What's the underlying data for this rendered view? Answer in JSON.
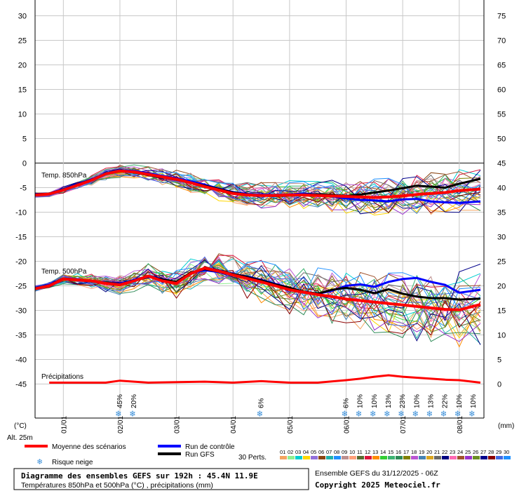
{
  "chart_data": {
    "type": "line",
    "left_axis": {
      "unit": "(°C)",
      "ticks": [
        30,
        25,
        20,
        15,
        10,
        5,
        0,
        -5,
        -10,
        -15,
        -20,
        -25,
        -30,
        -35,
        -40,
        -45
      ],
      "range": [
        -45,
        30
      ]
    },
    "right_axis": {
      "unit": "(mm)",
      "ticks": [
        75,
        70,
        65,
        60,
        55,
        50,
        45,
        40,
        35,
        30,
        25,
        20,
        15,
        10,
        5,
        0
      ],
      "range": [
        0,
        75
      ]
    },
    "altitude": "Alt. 25m",
    "x_ticks": [
      {
        "label": "01/01",
        "t": 12
      },
      {
        "label": "02/01",
        "t": 36
      },
      {
        "label": "03/01",
        "t": 60
      },
      {
        "label": "04/01",
        "t": 84
      },
      {
        "label": "05/01",
        "t": 108
      },
      {
        "label": "06/01",
        "t": 132
      },
      {
        "label": "07/01",
        "t": 156
      },
      {
        "label": "08/01",
        "t": 180
      }
    ],
    "x_range_hours": [
      0,
      189
    ],
    "annotations": {
      "t850": "Temp. 850hPa",
      "t500": "Temp. 500hPa",
      "precip": "Précipitations"
    },
    "snow_risk": [
      {
        "t": 36,
        "pct": "45%"
      },
      {
        "t": 42,
        "pct": "20%"
      },
      {
        "t": 96,
        "pct": "6%"
      },
      {
        "t": 132,
        "pct": "6%"
      },
      {
        "t": 138,
        "pct": "10%"
      },
      {
        "t": 144,
        "pct": "10%"
      },
      {
        "t": 150,
        "pct": "13%"
      },
      {
        "t": 156,
        "pct": "23%"
      },
      {
        "t": 162,
        "pct": "10%"
      },
      {
        "t": 168,
        "pct": "13%"
      },
      {
        "t": 174,
        "pct": "22%"
      },
      {
        "t": 180,
        "pct": "10%"
      },
      {
        "t": 186,
        "pct": "10%"
      }
    ],
    "series": [
      {
        "name": "Moyenne des scénarios",
        "color": "#ff0000",
        "t850": [
          [
            0,
            -6.5
          ],
          [
            6,
            -6.3
          ],
          [
            12,
            -5.5
          ],
          [
            18,
            -4.5
          ],
          [
            24,
            -3.5
          ],
          [
            30,
            -2.2
          ],
          [
            36,
            -1.6
          ],
          [
            42,
            -1.8
          ],
          [
            48,
            -2.3
          ],
          [
            54,
            -2.8
          ],
          [
            60,
            -3.3
          ],
          [
            66,
            -4
          ],
          [
            72,
            -4.8
          ],
          [
            78,
            -5.5
          ],
          [
            84,
            -6.2
          ],
          [
            90,
            -6.5
          ],
          [
            96,
            -6.6
          ],
          [
            102,
            -6.6
          ],
          [
            108,
            -6.5
          ],
          [
            114,
            -6.5
          ],
          [
            120,
            -6.6
          ],
          [
            126,
            -6.7
          ],
          [
            132,
            -6.8
          ],
          [
            138,
            -6.9
          ],
          [
            144,
            -7
          ],
          [
            150,
            -6.9
          ],
          [
            156,
            -6.7
          ],
          [
            162,
            -6.4
          ],
          [
            168,
            -6.2
          ],
          [
            174,
            -6
          ],
          [
            180,
            -5.6
          ],
          [
            189,
            -5.3
          ]
        ],
        "t500": [
          [
            0,
            -25.6
          ],
          [
            6,
            -25
          ],
          [
            12,
            -23.6
          ],
          [
            18,
            -23.8
          ],
          [
            24,
            -24
          ],
          [
            30,
            -24.5
          ],
          [
            36,
            -24.8
          ],
          [
            42,
            -24
          ],
          [
            48,
            -23
          ],
          [
            54,
            -24
          ],
          [
            60,
            -24.5
          ],
          [
            66,
            -22.5
          ],
          [
            72,
            -21.4
          ],
          [
            78,
            -22
          ],
          [
            84,
            -22.8
          ],
          [
            90,
            -23.5
          ],
          [
            96,
            -24.2
          ],
          [
            102,
            -25
          ],
          [
            108,
            -25.8
          ],
          [
            114,
            -26.3
          ],
          [
            120,
            -26.8
          ],
          [
            126,
            -27.2
          ],
          [
            132,
            -27.7
          ],
          [
            138,
            -28
          ],
          [
            144,
            -28.3
          ],
          [
            150,
            -28.6
          ],
          [
            156,
            -28.9
          ],
          [
            162,
            -29.2
          ],
          [
            168,
            -29.5
          ],
          [
            174,
            -29.8
          ],
          [
            180,
            -29.9
          ],
          [
            189,
            -28.8
          ]
        ],
        "precip": [
          [
            6,
            0
          ],
          [
            30,
            0
          ],
          [
            36,
            0.4
          ],
          [
            48,
            0
          ],
          [
            72,
            0.2
          ],
          [
            84,
            0
          ],
          [
            96,
            0.3
          ],
          [
            108,
            0
          ],
          [
            120,
            0
          ],
          [
            132,
            0.5
          ],
          [
            138,
            0.8
          ],
          [
            144,
            1.2
          ],
          [
            150,
            1.5
          ],
          [
            156,
            1.2
          ],
          [
            162,
            1
          ],
          [
            168,
            0.8
          ],
          [
            174,
            0.6
          ],
          [
            180,
            0.5
          ],
          [
            189,
            0
          ]
        ]
      },
      {
        "name": "Run de contrôle",
        "color": "#0000ff",
        "t850": [
          [
            0,
            -6.3
          ],
          [
            6,
            -6.2
          ],
          [
            12,
            -5.3
          ],
          [
            18,
            -4.3
          ],
          [
            24,
            -3.3
          ],
          [
            30,
            -2.1
          ],
          [
            36,
            -1.5
          ],
          [
            42,
            -1.6
          ],
          [
            48,
            -2.1
          ],
          [
            54,
            -2.6
          ],
          [
            60,
            -3.1
          ],
          [
            66,
            -3.7
          ],
          [
            72,
            -4.4
          ],
          [
            78,
            -5.2
          ],
          [
            84,
            -5.9
          ],
          [
            90,
            -6.3
          ],
          [
            96,
            -6.4
          ],
          [
            102,
            -6.5
          ],
          [
            108,
            -6.4
          ],
          [
            114,
            -6.2
          ],
          [
            120,
            -6.4
          ],
          [
            126,
            -6.8
          ],
          [
            132,
            -7.2
          ],
          [
            138,
            -7.5
          ],
          [
            144,
            -7.6
          ],
          [
            150,
            -7.8
          ],
          [
            156,
            -7.4
          ],
          [
            162,
            -7.3
          ],
          [
            168,
            -7.8
          ],
          [
            174,
            -8
          ],
          [
            180,
            -8.1
          ],
          [
            189,
            -7.8
          ]
        ],
        "t500": [
          [
            0,
            -25.4
          ],
          [
            6,
            -24.8
          ],
          [
            12,
            -23.5
          ],
          [
            18,
            -23.7
          ],
          [
            24,
            -24
          ],
          [
            30,
            -24.4
          ],
          [
            36,
            -24.6
          ],
          [
            42,
            -23.8
          ],
          [
            48,
            -23
          ],
          [
            54,
            -23.6
          ],
          [
            60,
            -24.4
          ],
          [
            66,
            -22.4
          ],
          [
            72,
            -21.8
          ],
          [
            78,
            -22.2
          ],
          [
            84,
            -22.6
          ],
          [
            90,
            -23.1
          ],
          [
            96,
            -23.8
          ],
          [
            102,
            -24.6
          ],
          [
            108,
            -25.4
          ],
          [
            114,
            -26.2
          ],
          [
            120,
            -26.6
          ],
          [
            126,
            -26
          ],
          [
            132,
            -25
          ],
          [
            138,
            -24.7
          ],
          [
            144,
            -25.2
          ],
          [
            150,
            -24.2
          ],
          [
            156,
            -23.6
          ],
          [
            162,
            -23.4
          ],
          [
            168,
            -24.2
          ],
          [
            174,
            -24.8
          ],
          [
            180,
            -26.4
          ],
          [
            189,
            -25.8
          ]
        ]
      },
      {
        "name": "Run GFS",
        "color": "#000000",
        "t850": [
          [
            0,
            -6.4
          ],
          [
            6,
            -6.2
          ],
          [
            12,
            -5.4
          ],
          [
            18,
            -4.4
          ],
          [
            24,
            -3.4
          ],
          [
            30,
            -2.2
          ],
          [
            36,
            -1.6
          ],
          [
            42,
            -1.9
          ],
          [
            48,
            -2.4
          ],
          [
            54,
            -2.9
          ],
          [
            60,
            -3.4
          ],
          [
            66,
            -4
          ],
          [
            72,
            -4.6
          ],
          [
            78,
            -5.3
          ],
          [
            84,
            -6
          ],
          [
            90,
            -6.4
          ],
          [
            96,
            -6.6
          ],
          [
            102,
            -6.7
          ],
          [
            108,
            -6.6
          ],
          [
            114,
            -6.4
          ],
          [
            120,
            -6.4
          ],
          [
            126,
            -6.5
          ],
          [
            132,
            -6.7
          ],
          [
            138,
            -6.4
          ],
          [
            144,
            -6
          ],
          [
            150,
            -5.6
          ],
          [
            156,
            -5.1
          ],
          [
            162,
            -4.6
          ],
          [
            168,
            -4.8
          ],
          [
            174,
            -5
          ],
          [
            180,
            -4.2
          ],
          [
            189,
            -3.2
          ]
        ],
        "t500": [
          [
            0,
            -25.5
          ],
          [
            6,
            -24.9
          ],
          [
            12,
            -23.5
          ],
          [
            18,
            -23.8
          ],
          [
            24,
            -24.1
          ],
          [
            30,
            -24.4
          ],
          [
            36,
            -24.7
          ],
          [
            42,
            -23.9
          ],
          [
            48,
            -23.1
          ],
          [
            54,
            -23.7
          ],
          [
            60,
            -24.2
          ],
          [
            66,
            -22.3
          ],
          [
            72,
            -21.6
          ],
          [
            78,
            -22.1
          ],
          [
            84,
            -22.6
          ],
          [
            90,
            -23.2
          ],
          [
            96,
            -23.9
          ],
          [
            102,
            -24.7
          ],
          [
            108,
            -25.4
          ],
          [
            114,
            -26.2
          ],
          [
            120,
            -26.6
          ],
          [
            126,
            -25.8
          ],
          [
            132,
            -25.4
          ],
          [
            138,
            -25.8
          ],
          [
            144,
            -26.5
          ],
          [
            150,
            -25.7
          ],
          [
            156,
            -26.6
          ],
          [
            162,
            -27.2
          ],
          [
            168,
            -27.5
          ],
          [
            174,
            -27.5
          ],
          [
            180,
            -27.8
          ],
          [
            189,
            -27.6
          ]
        ]
      }
    ],
    "perturbation_colors": [
      "#f4a460",
      "#90ee90",
      "#00ced1",
      "#ffd700",
      "#9370db",
      "#8b4513",
      "#20b2aa",
      "#1e90ff",
      "#bc8f8f",
      "#ffa07a",
      "#556b2f",
      "#dc143c",
      "#ff8c00",
      "#32cd32",
      "#3cb371",
      "#2e8b57",
      "#808000",
      "#ba55d3",
      "#4682b4",
      "#daa520",
      "#696969",
      "#000080",
      "#ff69b4",
      "#a0522d",
      "#9932cc",
      "#6b8e23",
      "#00008b",
      "#8b0000",
      "#4169e1",
      "#1e90ff"
    ]
  },
  "legend": {
    "mean": "Moyenne des scénarios",
    "control": "Run de contrôle",
    "gfs": "Run GFS",
    "snow": "Risque neige",
    "perts_label": "30 Perts.",
    "pert_numbers": [
      "01",
      "02",
      "03",
      "04",
      "05",
      "06",
      "07",
      "08",
      "09",
      "10",
      "11",
      "12",
      "13",
      "14",
      "15",
      "16",
      "17",
      "18",
      "19",
      "20",
      "21",
      "22",
      "23",
      "24",
      "25",
      "26",
      "27",
      "28",
      "29",
      "30"
    ]
  },
  "footer": {
    "title": "Diagramme des ensembles GEFS sur 192h : 45.4N 11.9E",
    "subtitle": "Températures 850hPa et 500hPa (°C) , précipitations (mm)",
    "run": "Ensemble GEFS du 31/12/2025 - 06Z",
    "copyright": "Copyright 2025 Meteociel.fr"
  }
}
